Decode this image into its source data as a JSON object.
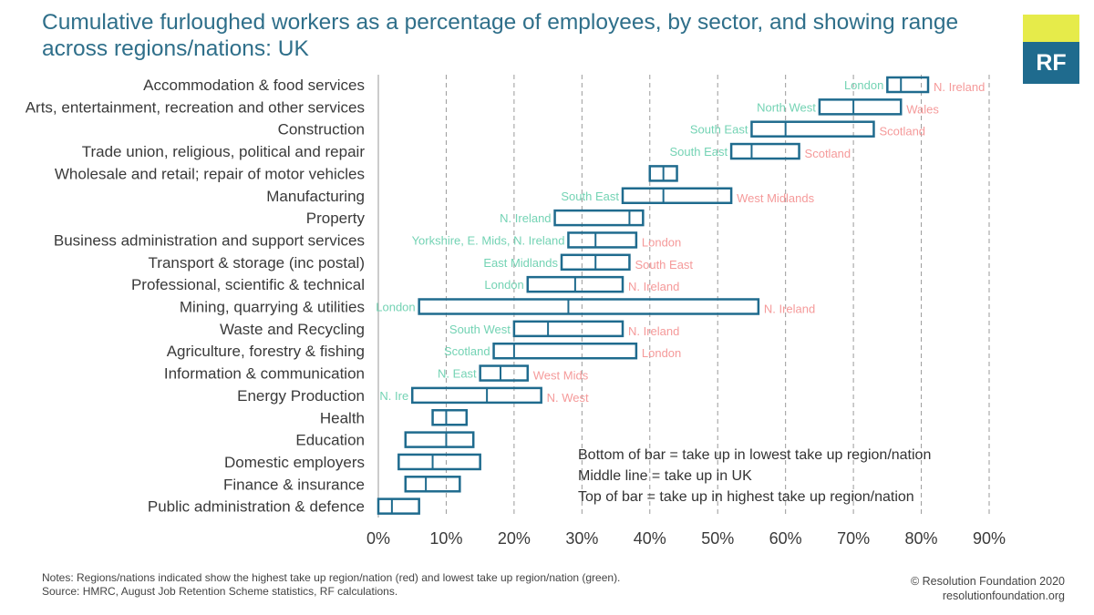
{
  "title": "Cumulative furloughed workers as a percentage of employees, by sector, and showing range across regions/nations: UK",
  "logo": {
    "text": "RF",
    "colors": {
      "top": "#e6eb4a",
      "bottom": "#1f6b8e"
    }
  },
  "legend": [
    "Bottom of bar = take up in lowest take up region/nation",
    "Middle line = take up in UK",
    "Top of bar = take up in highest take up region/nation"
  ],
  "notes": [
    "Notes: Regions/nations indicated show the highest take up region/nation (red) and lowest take up region/nation (green).",
    "Source: HMRC, August Job Retention Scheme statistics, RF calculations."
  ],
  "credit": [
    "© Resolution Foundation 2020",
    "resolutionfoundation.org"
  ],
  "colors": {
    "bar": "#1f6b8e",
    "low": "#74d3b4",
    "high": "#f59a9a",
    "grid": "#9a9a9a"
  },
  "chart_data": {
    "type": "box",
    "orientation": "horizontal",
    "title": "Cumulative furloughed workers as a percentage of employees, by sector, and showing range across regions/nations: UK",
    "xlim": [
      0,
      90
    ],
    "xticks": [
      "0%",
      "10%",
      "20%",
      "30%",
      "40%",
      "50%",
      "60%",
      "70%",
      "80%",
      "90%"
    ],
    "grid": "vertical dashed",
    "categories": [
      {
        "label": "Accommodation & food services",
        "low": 75,
        "uk": 77,
        "high": 81,
        "low_region": "London",
        "high_region": "N. Ireland"
      },
      {
        "label": "Arts, entertainment, recreation and other services",
        "low": 65,
        "uk": 70,
        "high": 77,
        "low_region": "North West",
        "high_region": "Wales"
      },
      {
        "label": "Construction",
        "low": 55,
        "uk": 60,
        "high": 73,
        "low_region": "South East",
        "high_region": "Scotland"
      },
      {
        "label": "Trade union, religious, political and repair",
        "low": 52,
        "uk": 55,
        "high": 62,
        "low_region": "South East",
        "high_region": "Scotland"
      },
      {
        "label": "Wholesale and retail; repair of motor vehicles",
        "low": 40,
        "uk": 42,
        "high": 44,
        "low_region": "",
        "high_region": ""
      },
      {
        "label": "Manufacturing",
        "low": 36,
        "uk": 42,
        "high": 52,
        "low_region": "South East",
        "high_region": "West Midlands"
      },
      {
        "label": "Property",
        "low": 26,
        "uk": 37,
        "high": 39,
        "low_region": "N. Ireland",
        "high_region": ""
      },
      {
        "label": "Business administration and support services",
        "low": 28,
        "uk": 32,
        "high": 38,
        "low_region": "Yorkshire, E. Mids, N. Ireland",
        "high_region": "London"
      },
      {
        "label": "Transport & storage (inc postal)",
        "low": 27,
        "uk": 32,
        "high": 37,
        "low_region": "East Midlands",
        "high_region": "South East"
      },
      {
        "label": "Professional, scientific & technical",
        "low": 22,
        "uk": 29,
        "high": 36,
        "low_region": "London",
        "high_region": "N. Ireland"
      },
      {
        "label": "Mining, quarrying & utilities",
        "low": 6,
        "uk": 28,
        "high": 56,
        "low_region": "London",
        "high_region": "N. Ireland"
      },
      {
        "label": "Waste and Recycling",
        "low": 20,
        "uk": 25,
        "high": 36,
        "low_region": "South West",
        "high_region": "N. Ireland"
      },
      {
        "label": "Agriculture, forestry & fishing",
        "low": 17,
        "uk": 20,
        "high": 38,
        "low_region": "Scotland",
        "high_region": "London"
      },
      {
        "label": "Information & communication",
        "low": 15,
        "uk": 18,
        "high": 22,
        "low_region": "N. East",
        "high_region": "West Mids"
      },
      {
        "label": "Energy Production",
        "low": 5,
        "uk": 16,
        "high": 24,
        "low_region": "N. Ire",
        "high_region": "N. West"
      },
      {
        "label": "Health",
        "low": 8,
        "uk": 10,
        "high": 13,
        "low_region": "",
        "high_region": ""
      },
      {
        "label": "Education",
        "low": 4,
        "uk": 10,
        "high": 14,
        "low_region": "",
        "high_region": ""
      },
      {
        "label": "Domestic employers",
        "low": 3,
        "uk": 8,
        "high": 15,
        "low_region": "",
        "high_region": ""
      },
      {
        "label": "Finance & insurance",
        "low": 4,
        "uk": 7,
        "high": 12,
        "low_region": "",
        "high_region": ""
      },
      {
        "label": "Public administration & defence",
        "low": 0,
        "uk": 2,
        "high": 6,
        "low_region": "",
        "high_region": ""
      }
    ]
  }
}
